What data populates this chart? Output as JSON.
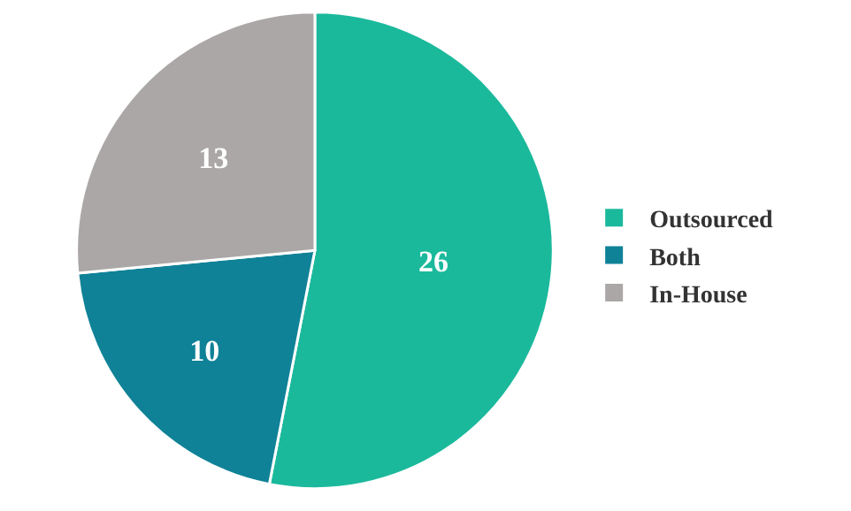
{
  "chart_data": {
    "type": "pie",
    "categories": [
      "Outsourced",
      "Both",
      "In-House"
    ],
    "values": [
      26,
      10,
      13
    ],
    "colors": [
      "#1bb99c",
      "#0f8297",
      "#aba7a7"
    ],
    "data_labels": true,
    "legend": "right"
  }
}
